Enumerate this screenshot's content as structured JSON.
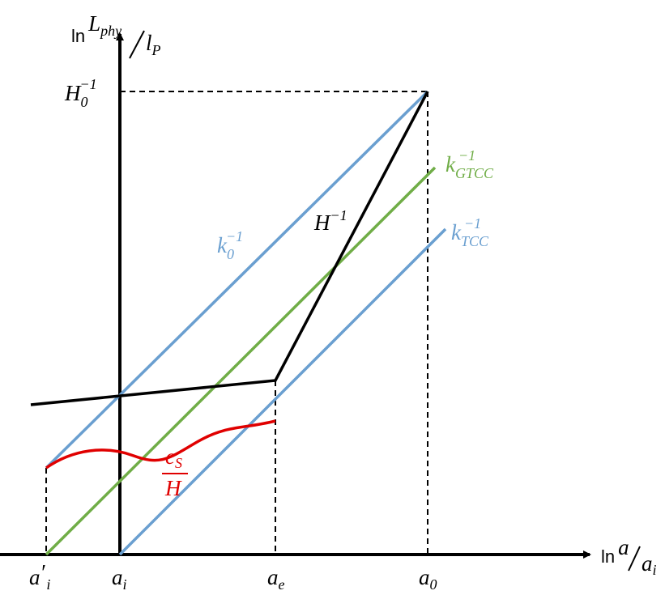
{
  "y_axis_label": {
    "ln": "ln",
    "num": "L",
    "num_sub": "phy",
    "den": "l",
    "den_sub": "P"
  },
  "x_axis_label": {
    "ln": "ln",
    "num": "a",
    "den": "a",
    "den_sub": "i"
  },
  "hubble_today": {
    "base": "H",
    "sub": "0",
    "sup": "−1"
  },
  "curves": [
    {
      "base": "k",
      "sub": "0",
      "sup": "−1"
    },
    {
      "base": "H",
      "sup": "−1"
    },
    {
      "base": "k",
      "sub": "GTCC",
      "sup": "−1"
    },
    {
      "base": "k",
      "sub": "TCC",
      "sup": "−1"
    },
    {
      "num": "c",
      "num_sub": "S",
      "den": "H"
    }
  ],
  "x_ticks": [
    {
      "base": "a",
      "prime": "′",
      "sub": "i"
    },
    {
      "base": "a",
      "sub": "i"
    },
    {
      "base": "a",
      "sub": "e"
    },
    {
      "base": "a",
      "sub": "0"
    }
  ]
}
